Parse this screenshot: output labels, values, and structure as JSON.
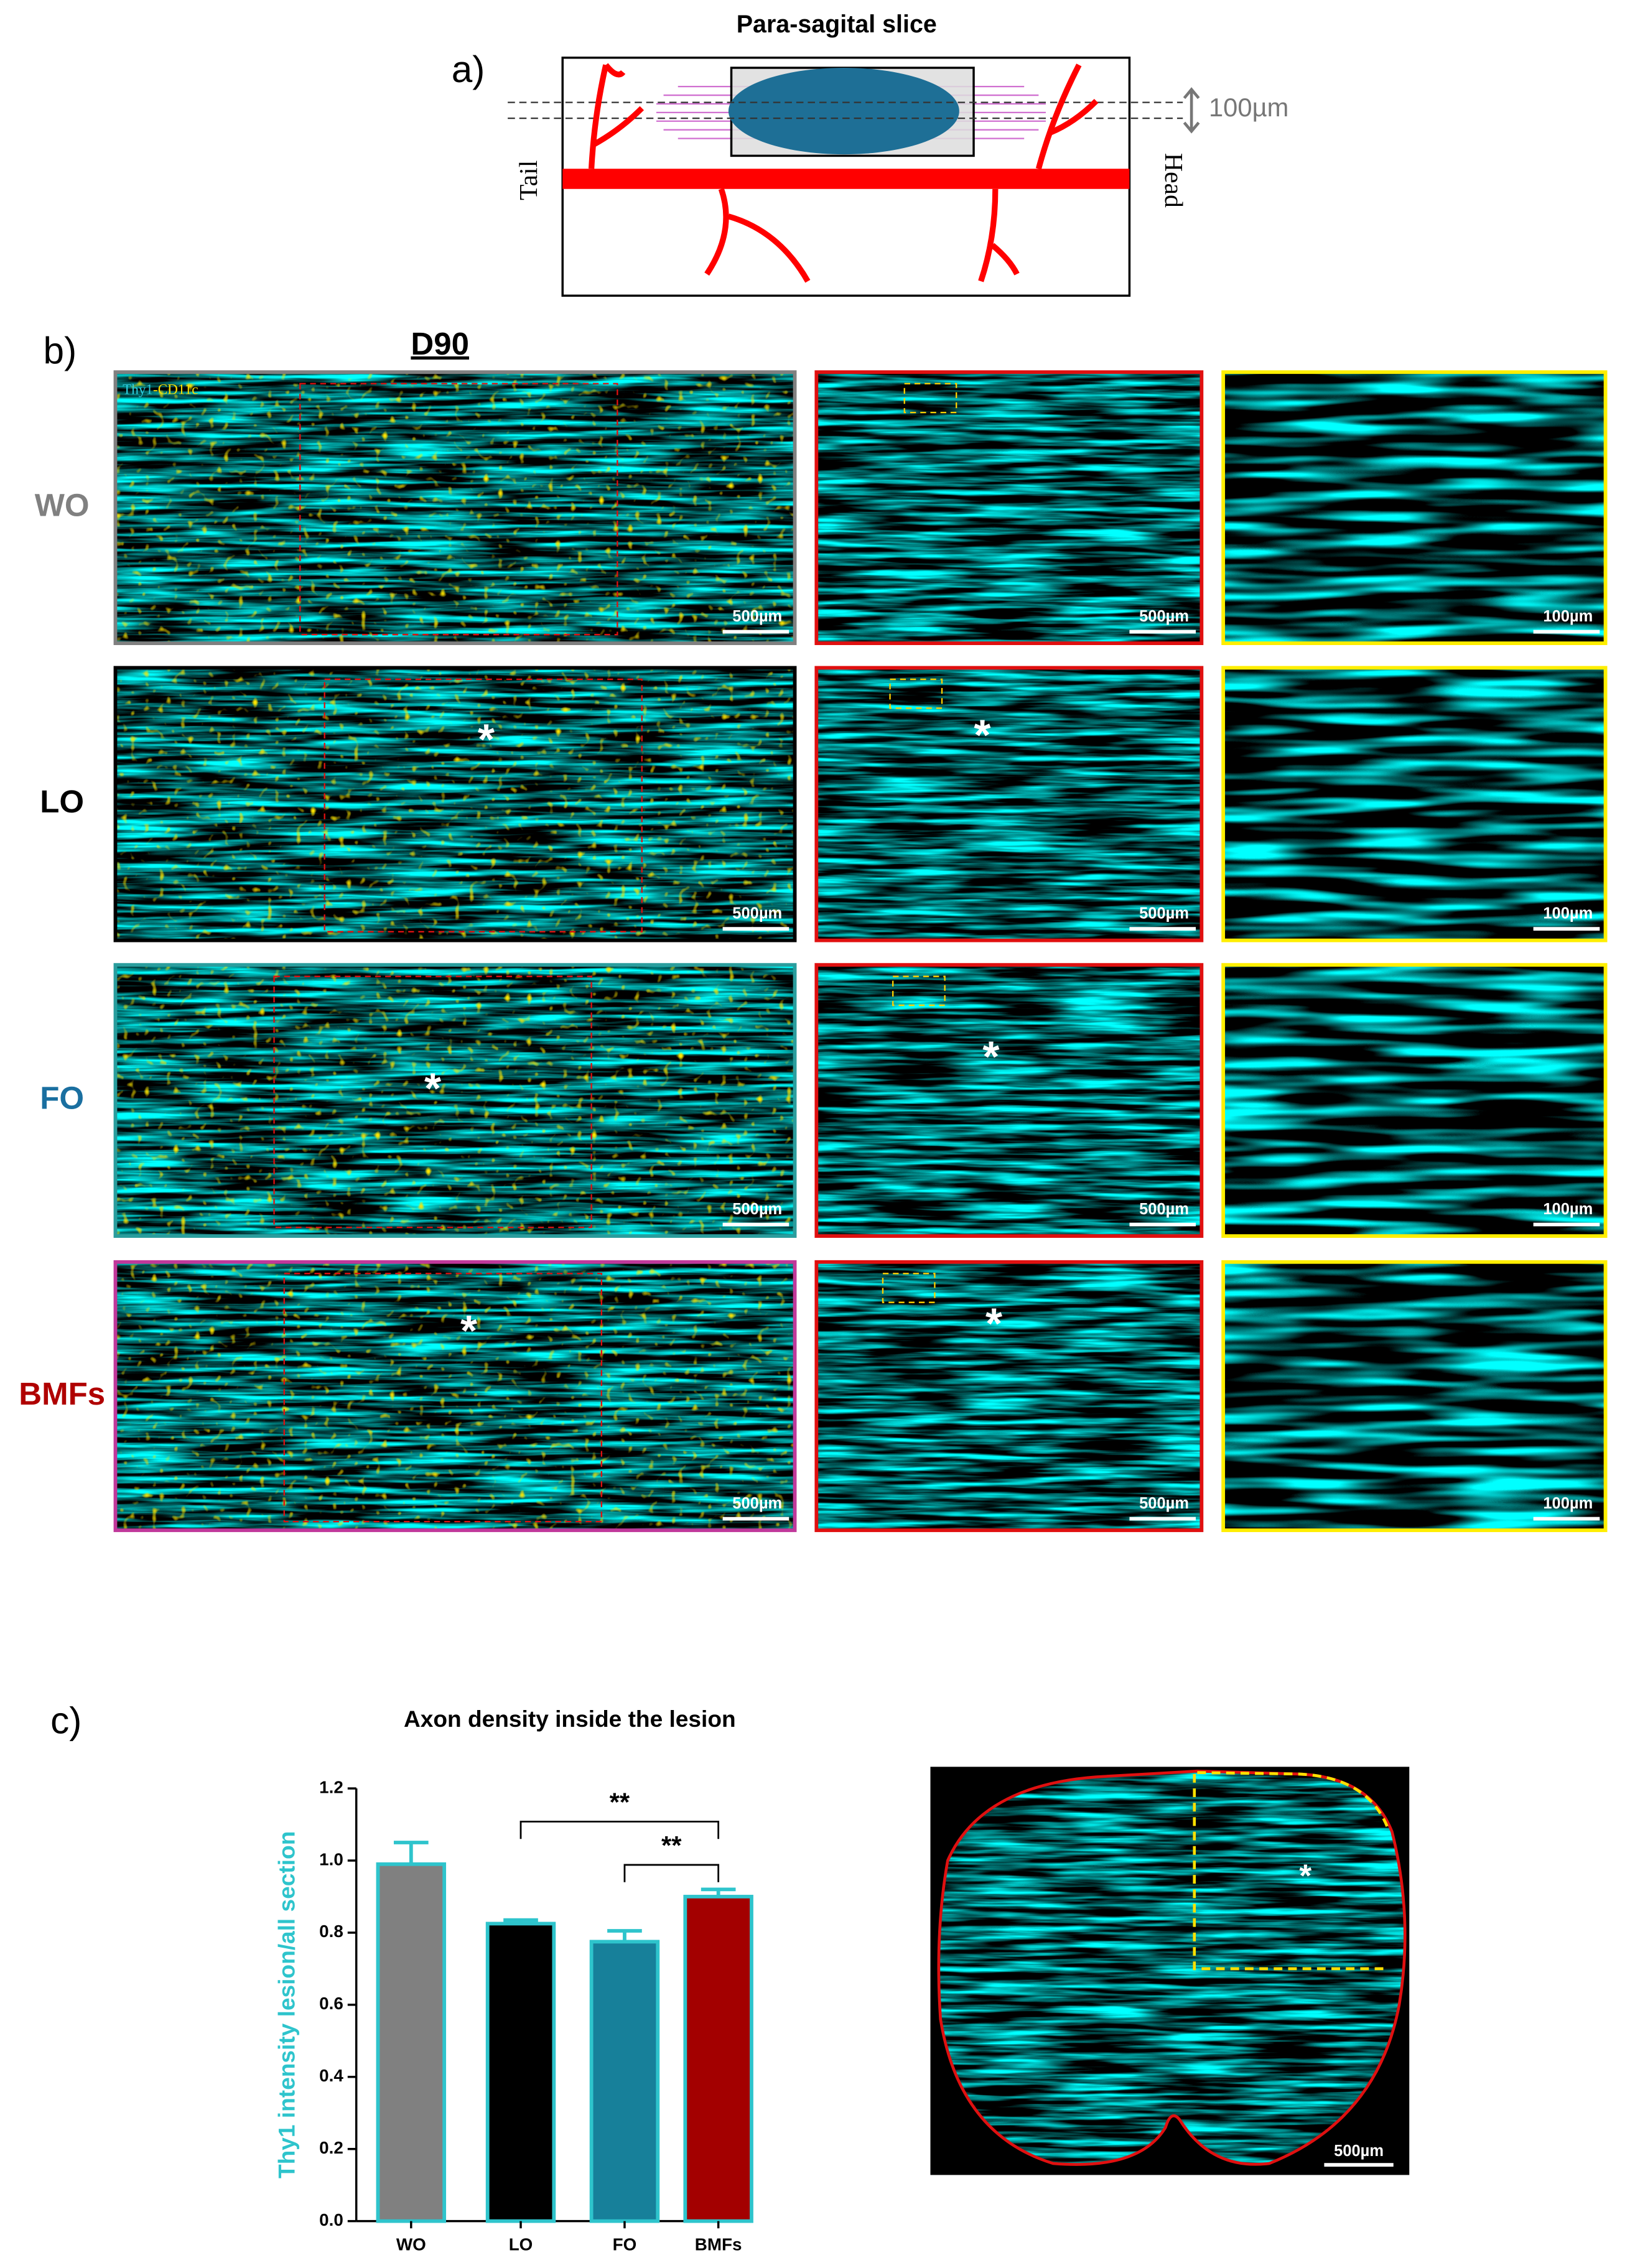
{
  "panel_a": {
    "label": "a)",
    "title": "Para-sagital slice",
    "thickness": "100µm",
    "left": "Tail",
    "right": "Head"
  },
  "panel_b": {
    "label": "b)",
    "timepoint": "D90",
    "stain": {
      "thy1": "Thy1",
      "cd11c": "-CD11c"
    },
    "rows": [
      {
        "group": "WO",
        "scale_bars": [
          "500µm",
          "500µm",
          "100µm"
        ]
      },
      {
        "group": "LO",
        "scale_bars": [
          "500µm",
          "500µm",
          "100µm"
        ],
        "markers": [
          "*",
          "*"
        ]
      },
      {
        "group": "FO",
        "scale_bars": [
          "500µm",
          "500µm",
          "100µm"
        ],
        "markers": [
          "*",
          "*"
        ]
      },
      {
        "group": "BMFs",
        "scale_bars": [
          "500µm",
          "500µm",
          "100µm"
        ],
        "markers": [
          "*",
          "*"
        ]
      }
    ]
  },
  "chart_data": {
    "type": "bar",
    "title": "Axon density inside the lesion",
    "y_label": "Thy1 intensity lesion/all section",
    "categories": [
      "WO",
      "LO",
      "FO",
      "BMFs"
    ],
    "values": [
      0.99,
      0.825,
      0.775,
      0.9
    ],
    "errors": [
      0.06,
      0.01,
      0.03,
      0.02
    ],
    "colors": [
      "#808080",
      "#000000",
      "#17809a",
      "#a30000"
    ],
    "edge_color": "#2ec4cc",
    "ylim": [
      0,
      1.2
    ],
    "yticks": [
      {
        "value": 0,
        "label": "0.0"
      },
      0.2,
      0.4,
      0.6,
      0.8,
      {
        "value": 1,
        "label": "1.0"
      },
      1.2
    ],
    "annotations": [
      "**",
      "**"
    ]
  },
  "panel_c": {
    "label": "c)",
    "inset": {
      "scale_bar": "500µm",
      "marker": "*"
    }
  }
}
